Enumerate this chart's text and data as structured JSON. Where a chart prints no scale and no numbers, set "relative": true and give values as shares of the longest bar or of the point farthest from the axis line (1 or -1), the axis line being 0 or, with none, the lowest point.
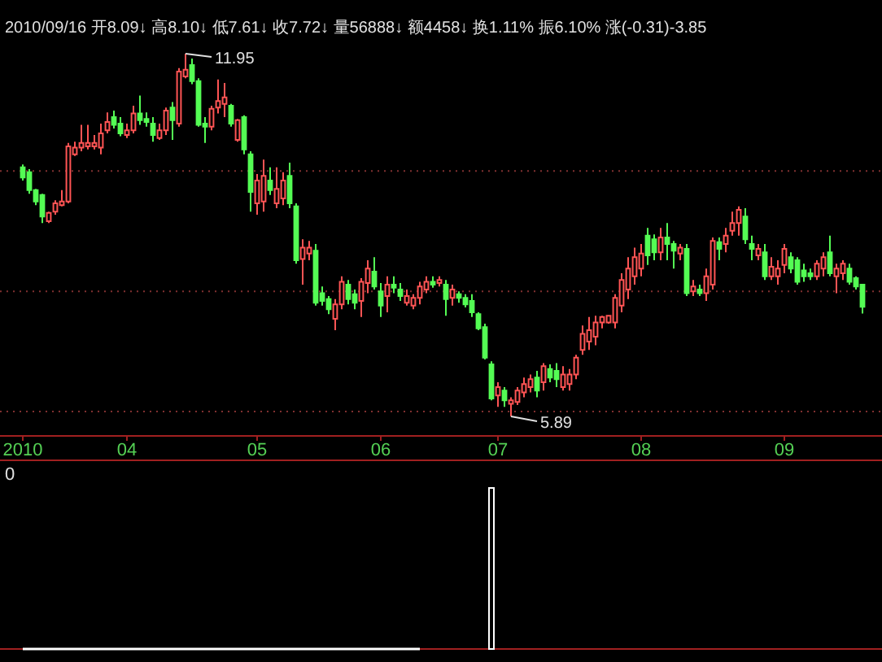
{
  "chart_data": [
    {
      "type": "candlestick",
      "categories": [
        "2010",
        null,
        null,
        null,
        null,
        null,
        null,
        null,
        null,
        null,
        null,
        null,
        null,
        null,
        null,
        null,
        "04",
        null,
        null,
        null,
        null,
        null,
        null,
        null,
        null,
        null,
        null,
        null,
        null,
        null,
        null,
        null,
        null,
        null,
        null,
        null,
        "05",
        null,
        null,
        null,
        null,
        null,
        null,
        null,
        null,
        null,
        null,
        null,
        null,
        null,
        null,
        null,
        null,
        null,
        null,
        "06",
        null,
        null,
        null,
        null,
        null,
        null,
        null,
        null,
        null,
        null,
        null,
        null,
        null,
        null,
        null,
        null,
        null,
        "07",
        null,
        null,
        null,
        null,
        null,
        null,
        null,
        null,
        null,
        null,
        null,
        null,
        null,
        null,
        null,
        null,
        null,
        null,
        null,
        null,
        null,
        "08",
        null,
        null,
        null,
        null,
        null,
        null,
        null,
        null,
        null,
        null,
        null,
        null,
        null,
        null,
        null,
        null,
        null,
        null,
        null,
        null,
        null,
        "09",
        null,
        null,
        null,
        null,
        null,
        null,
        null,
        null,
        null,
        null,
        null,
        null
      ],
      "ohlc": [
        [
          10.05,
          10.1,
          9.83,
          9.88
        ],
        [
          9.97,
          10.02,
          9.61,
          9.67
        ],
        [
          9.67,
          9.69,
          9.42,
          9.48
        ],
        [
          9.59,
          9.61,
          9.12,
          9.23
        ],
        [
          9.15,
          9.31,
          9.12,
          9.29
        ],
        [
          9.31,
          9.5,
          9.26,
          9.45
        ],
        [
          9.42,
          9.67,
          9.4,
          9.48
        ],
        [
          9.48,
          10.46,
          9.45,
          10.4
        ],
        [
          10.27,
          10.48,
          10.24,
          10.38
        ],
        [
          10.38,
          10.76,
          10.32,
          10.46
        ],
        [
          10.4,
          10.76,
          10.35,
          10.46
        ],
        [
          10.4,
          10.59,
          10.35,
          10.46
        ],
        [
          10.38,
          10.78,
          10.27,
          10.62
        ],
        [
          10.67,
          10.97,
          10.62,
          10.81
        ],
        [
          10.89,
          11.0,
          10.7,
          10.76
        ],
        [
          10.78,
          10.89,
          10.57,
          10.62
        ],
        [
          10.59,
          10.78,
          10.54,
          10.67
        ],
        [
          10.67,
          11.08,
          10.62,
          10.95
        ],
        [
          10.95,
          11.25,
          10.76,
          10.84
        ],
        [
          10.86,
          10.97,
          10.73,
          10.81
        ],
        [
          10.78,
          10.89,
          10.48,
          10.59
        ],
        [
          10.54,
          10.78,
          10.51,
          10.67
        ],
        [
          10.67,
          11.05,
          10.59,
          11.0
        ],
        [
          11.05,
          11.14,
          10.51,
          10.84
        ],
        [
          10.78,
          11.71,
          10.73,
          11.65
        ],
        [
          11.57,
          11.95,
          11.54,
          11.68
        ],
        [
          11.76,
          11.87,
          11.44,
          11.49
        ],
        [
          11.49,
          11.54,
          10.73,
          10.76
        ],
        [
          10.78,
          10.89,
          10.46,
          10.73
        ],
        [
          10.73,
          11.08,
          10.67,
          11.03
        ],
        [
          11.05,
          11.52,
          10.95,
          11.16
        ],
        [
          11.11,
          11.46,
          10.89,
          11.22
        ],
        [
          11.08,
          11.11,
          10.73,
          10.78
        ],
        [
          10.51,
          10.86,
          10.48,
          10.84
        ],
        [
          10.89,
          10.92,
          10.27,
          10.35
        ],
        [
          10.27,
          10.32,
          9.31,
          9.64
        ],
        [
          9.45,
          9.94,
          9.26,
          9.83
        ],
        [
          9.48,
          10.18,
          9.31,
          9.91
        ],
        [
          9.83,
          10.05,
          9.59,
          9.67
        ],
        [
          9.45,
          10.05,
          9.37,
          9.69
        ],
        [
          9.53,
          9.97,
          9.42,
          9.83
        ],
        [
          9.91,
          10.13,
          9.37,
          9.45
        ],
        [
          9.4,
          9.45,
          8.44,
          8.5
        ],
        [
          8.52,
          8.85,
          8.09,
          8.71
        ],
        [
          8.61,
          8.82,
          8.5,
          8.71
        ],
        [
          8.66,
          8.77,
          7.74,
          7.79
        ],
        [
          7.95,
          8.06,
          7.74,
          7.82
        ],
        [
          7.85,
          7.9,
          7.6,
          7.68
        ],
        [
          7.52,
          7.85,
          7.33,
          7.76
        ],
        [
          7.76,
          8.23,
          7.68,
          8.14
        ],
        [
          8.09,
          8.17,
          7.76,
          7.85
        ],
        [
          7.93,
          8.01,
          7.68,
          7.79
        ],
        [
          7.82,
          8.2,
          7.55,
          8.14
        ],
        [
          8.12,
          8.5,
          7.95,
          8.36
        ],
        [
          8.31,
          8.55,
          8.01,
          8.06
        ],
        [
          7.98,
          8.12,
          7.55,
          7.74
        ],
        [
          7.9,
          8.23,
          7.63,
          8.09
        ],
        [
          8.09,
          8.23,
          7.95,
          8.04
        ],
        [
          8.01,
          8.12,
          7.82,
          7.9
        ],
        [
          7.79,
          8.01,
          7.74,
          7.9
        ],
        [
          7.74,
          7.93,
          7.68,
          7.87
        ],
        [
          7.87,
          8.14,
          7.76,
          8.06
        ],
        [
          8.01,
          8.23,
          7.95,
          8.14
        ],
        [
          8.14,
          8.23,
          8.04,
          8.09
        ],
        [
          8.12,
          8.23,
          8.06,
          8.17
        ],
        [
          8.09,
          8.17,
          7.57,
          7.85
        ],
        [
          7.87,
          8.09,
          7.74,
          8.01
        ],
        [
          7.93,
          7.98,
          7.79,
          7.87
        ],
        [
          7.87,
          7.93,
          7.71,
          7.76
        ],
        [
          7.82,
          7.93,
          7.55,
          7.63
        ],
        [
          7.6,
          7.63,
          7.33,
          7.36
        ],
        [
          7.38,
          7.44,
          6.84,
          6.87
        ],
        [
          6.76,
          6.81,
          6.16,
          6.19
        ],
        [
          6.24,
          6.46,
          6.05,
          6.38
        ],
        [
          6.32,
          6.38,
          6.05,
          6.16
        ],
        [
          6.1,
          6.21,
          5.89,
          6.16
        ],
        [
          6.13,
          6.38,
          6.08,
          6.32
        ],
        [
          6.29,
          6.54,
          6.21,
          6.43
        ],
        [
          6.38,
          6.59,
          6.29,
          6.51
        ],
        [
          6.54,
          6.65,
          6.21,
          6.32
        ],
        [
          6.46,
          6.78,
          6.32,
          6.73
        ],
        [
          6.68,
          6.76,
          6.46,
          6.54
        ],
        [
          6.65,
          6.78,
          6.38,
          6.51
        ],
        [
          6.38,
          6.73,
          6.32,
          6.59
        ],
        [
          6.43,
          6.68,
          6.32,
          6.59
        ],
        [
          6.59,
          6.92,
          6.51,
          6.87
        ],
        [
          7.0,
          7.41,
          6.92,
          7.27
        ],
        [
          7.14,
          7.55,
          7.0,
          7.33
        ],
        [
          7.22,
          7.57,
          7.08,
          7.46
        ],
        [
          7.46,
          7.57,
          7.36,
          7.55
        ],
        [
          7.46,
          7.57,
          7.44,
          7.57
        ],
        [
          7.46,
          7.93,
          7.36,
          7.87
        ],
        [
          7.74,
          8.28,
          7.63,
          8.17
        ],
        [
          8.01,
          8.55,
          7.85,
          8.36
        ],
        [
          8.23,
          8.71,
          8.09,
          8.55
        ],
        [
          8.36,
          8.77,
          8.23,
          8.61
        ],
        [
          8.91,
          9.04,
          8.42,
          8.58
        ],
        [
          8.85,
          8.93,
          8.5,
          8.63
        ],
        [
          8.63,
          9.04,
          8.5,
          8.88
        ],
        [
          8.88,
          9.12,
          8.5,
          8.77
        ],
        [
          8.77,
          8.82,
          8.36,
          8.66
        ],
        [
          8.61,
          8.77,
          8.5,
          8.71
        ],
        [
          8.69,
          8.77,
          7.9,
          7.95
        ],
        [
          7.98,
          8.17,
          7.9,
          8.06
        ],
        [
          8.01,
          8.09,
          7.9,
          7.95
        ],
        [
          7.95,
          8.36,
          7.82,
          8.23
        ],
        [
          8.09,
          8.88,
          8.01,
          8.82
        ],
        [
          8.8,
          8.88,
          8.5,
          8.69
        ],
        [
          8.77,
          9.04,
          8.63,
          8.91
        ],
        [
          8.99,
          9.31,
          8.91,
          9.12
        ],
        [
          9.12,
          9.4,
          8.91,
          9.34
        ],
        [
          9.23,
          9.37,
          8.77,
          8.85
        ],
        [
          8.77,
          8.91,
          8.5,
          8.69
        ],
        [
          8.58,
          8.77,
          8.5,
          8.69
        ],
        [
          8.63,
          8.77,
          8.17,
          8.23
        ],
        [
          8.23,
          8.55,
          8.17,
          8.39
        ],
        [
          8.23,
          8.5,
          8.09,
          8.36
        ],
        [
          8.42,
          8.77,
          8.28,
          8.69
        ],
        [
          8.55,
          8.63,
          8.28,
          8.36
        ],
        [
          8.5,
          8.55,
          8.09,
          8.14
        ],
        [
          8.33,
          8.44,
          8.14,
          8.23
        ],
        [
          8.28,
          8.36,
          8.17,
          8.23
        ],
        [
          8.23,
          8.5,
          8.17,
          8.44
        ],
        [
          8.36,
          8.63,
          8.23,
          8.55
        ],
        [
          8.63,
          8.91,
          8.23,
          8.28
        ],
        [
          8.23,
          8.44,
          7.95,
          8.36
        ],
        [
          8.28,
          8.5,
          8.17,
          8.44
        ],
        [
          8.36,
          8.44,
          8.09,
          8.14
        ],
        [
          8.2,
          8.23,
          8.01,
          8.06
        ],
        [
          8.09,
          8.1,
          7.61,
          7.72
        ]
      ],
      "colors": [
        "#54fc54",
        "#54fc54",
        "#54fc54",
        "#54fc54",
        "#ff5454",
        "#ff5454",
        "#ff5454",
        "#ff5454",
        "#ff5454",
        "#ff5454",
        "#ff5454",
        "#ff5454",
        "#ff5454",
        "#ff5454",
        "#54fc54",
        "#54fc54",
        "#ff5454",
        "#ff5454",
        "#54fc54",
        "#54fc54",
        "#54fc54",
        "#ff5454",
        "#ff5454",
        "#54fc54",
        "#ff5454",
        "#ff5454",
        "#54fc54",
        "#54fc54",
        "#54fc54",
        "#ff5454",
        "#ff5454",
        "#ff5454",
        "#54fc54",
        "#ff5454",
        "#54fc54",
        "#54fc54",
        "#ff5454",
        "#ff5454",
        "#54fc54",
        "#ff5454",
        "#ff5454",
        "#54fc54",
        "#54fc54",
        "#ff5454",
        "#ff5454",
        "#54fc54",
        "#54fc54",
        "#54fc54",
        "#ff5454",
        "#ff5454",
        "#54fc54",
        "#54fc54",
        "#ff5454",
        "#ff5454",
        "#54fc54",
        "#54fc54",
        "#ff5454",
        "#54fc54",
        "#54fc54",
        "#ff5454",
        "#ff5454",
        "#ff5454",
        "#ff5454",
        "#54fc54",
        "#ff5454",
        "#54fc54",
        "#ff5454",
        "#54fc54",
        "#54fc54",
        "#54fc54",
        "#54fc54",
        "#54fc54",
        "#54fc54",
        "#ff5454",
        "#54fc54",
        "#ff5454",
        "#ff5454",
        "#ff5454",
        "#ff5454",
        "#54fc54",
        "#ff5454",
        "#54fc54",
        "#54fc54",
        "#ff5454",
        "#ff5454",
        "#ff5454",
        "#ff5454",
        "#ff5454",
        "#ff5454",
        "#ff5454",
        "#ff5454",
        "#ff5454",
        "#ff5454",
        "#ff5454",
        "#ff5454",
        "#ff5454",
        "#54fc54",
        "#54fc54",
        "#ff5454",
        "#54fc54",
        "#54fc54",
        "#ff5454",
        "#54fc54",
        "#ff5454",
        "#54fc54",
        "#ff5454",
        "#ff5454",
        "#54fc54",
        "#ff5454",
        "#ff5454",
        "#ff5454",
        "#54fc54",
        "#54fc54",
        "#ff5454",
        "#54fc54",
        "#ff5454",
        "#ff5454",
        "#ff5454",
        "#54fc54",
        "#54fc54",
        "#54fc54",
        "#54fc54",
        "#ff5454",
        "#ff5454",
        "#54fc54",
        "#ff5454",
        "#ff5454",
        "#54fc54",
        "#54fc54",
        "#54fc54"
      ],
      "yticks": [
        {
          "value": 5.97,
          "label": null
        },
        {
          "value": 7.98,
          "label": null
        },
        {
          "value": 9.99,
          "label": null
        }
      ],
      "grid": "y",
      "tick_labels": "x",
      "subtitle": "2010/09/16 开8.09↓ 高8.10↓ 低7.61↓ 收7.72↓ 量56888↓ 额4458↓ 换1.11% 振6.10% 涨(-0.31)-3.85",
      "annotations": [
        "11.95",
        "5.89"
      ]
    },
    {
      "type": "bar",
      "relative": true,
      "categories": [
        null,
        null,
        null,
        null,
        null,
        null,
        null,
        null,
        null,
        null,
        null,
        null,
        null,
        null,
        null,
        null,
        null,
        null,
        null,
        null,
        null,
        null,
        null,
        null,
        null,
        null,
        null,
        null,
        null,
        null,
        null,
        null,
        null,
        null,
        null,
        null,
        null,
        null,
        null,
        null,
        null,
        null,
        null,
        null,
        null,
        null,
        null,
        null,
        null,
        null,
        null,
        null,
        null,
        null,
        null,
        null,
        null,
        null,
        null,
        null,
        null,
        null,
        null,
        null,
        null,
        null,
        null,
        null,
        null,
        null,
        null,
        null,
        null,
        null,
        null,
        null,
        null,
        null,
        null,
        null,
        null,
        null,
        null,
        null,
        null,
        null,
        null,
        null,
        null,
        null,
        null,
        null,
        null,
        null,
        null,
        null,
        null,
        null,
        null,
        null,
        null,
        null,
        null,
        null,
        null,
        null,
        null,
        null,
        null,
        null,
        null,
        null,
        null,
        null,
        null,
        null,
        null,
        null,
        null,
        null,
        null,
        null,
        null,
        null,
        null,
        null,
        null,
        null,
        null,
        null
      ],
      "annotations": [
        "0"
      ],
      "series": [
        {
          "type": "line",
          "color": "#ffffff",
          "values": [
            0,
            0,
            0,
            0,
            0,
            0,
            0,
            0,
            0,
            0,
            0,
            0,
            0,
            0,
            0,
            0,
            0,
            0,
            0,
            0,
            0,
            0,
            0,
            0,
            0,
            0,
            0,
            0,
            0,
            0,
            0,
            0,
            0,
            0,
            0,
            0,
            0,
            0,
            0,
            0,
            0,
            0,
            0,
            0,
            0,
            0,
            0,
            0,
            0,
            0,
            0,
            0,
            0,
            0,
            0,
            0,
            0,
            0,
            0,
            0,
            0,
            0,
            null,
            null,
            null,
            null,
            null,
            null,
            null,
            null,
            null,
            null,
            null,
            null,
            null,
            null,
            null,
            null,
            null,
            null,
            null,
            null,
            null,
            null,
            null,
            null,
            null,
            null,
            null,
            null,
            null,
            null,
            null,
            null,
            null,
            null,
            null,
            null,
            null,
            null,
            null,
            null,
            null,
            null,
            null,
            null,
            null,
            null,
            null,
            null,
            null,
            null,
            null,
            null,
            null,
            null,
            null,
            null,
            null,
            null,
            null,
            null,
            null,
            null,
            null,
            null,
            null,
            null,
            null,
            null
          ]
        },
        {
          "type": "bar",
          "color": "#ffffff",
          "values": [
            null,
            null,
            null,
            null,
            null,
            null,
            null,
            null,
            null,
            null,
            null,
            null,
            null,
            null,
            null,
            null,
            null,
            null,
            null,
            null,
            null,
            null,
            null,
            null,
            null,
            null,
            null,
            null,
            null,
            null,
            null,
            null,
            null,
            null,
            null,
            null,
            null,
            null,
            null,
            null,
            null,
            null,
            null,
            null,
            null,
            null,
            null,
            null,
            null,
            null,
            null,
            null,
            null,
            null,
            null,
            null,
            null,
            null,
            null,
            null,
            null,
            null,
            null,
            null,
            null,
            null,
            null,
            null,
            null,
            null,
            null,
            null,
            1,
            null,
            null,
            null,
            null,
            null,
            null,
            null,
            null,
            null,
            null,
            null,
            null,
            null,
            null,
            null,
            null,
            null,
            null,
            null,
            null,
            null,
            null,
            null,
            null,
            null,
            null,
            null,
            null,
            null,
            null,
            null,
            null,
            null,
            null,
            null,
            null,
            null,
            null,
            null,
            null,
            null,
            null,
            null,
            null,
            null,
            null,
            null,
            null,
            null,
            null,
            null,
            null,
            null,
            null,
            null,
            null,
            null
          ]
        }
      ]
    }
  ]
}
